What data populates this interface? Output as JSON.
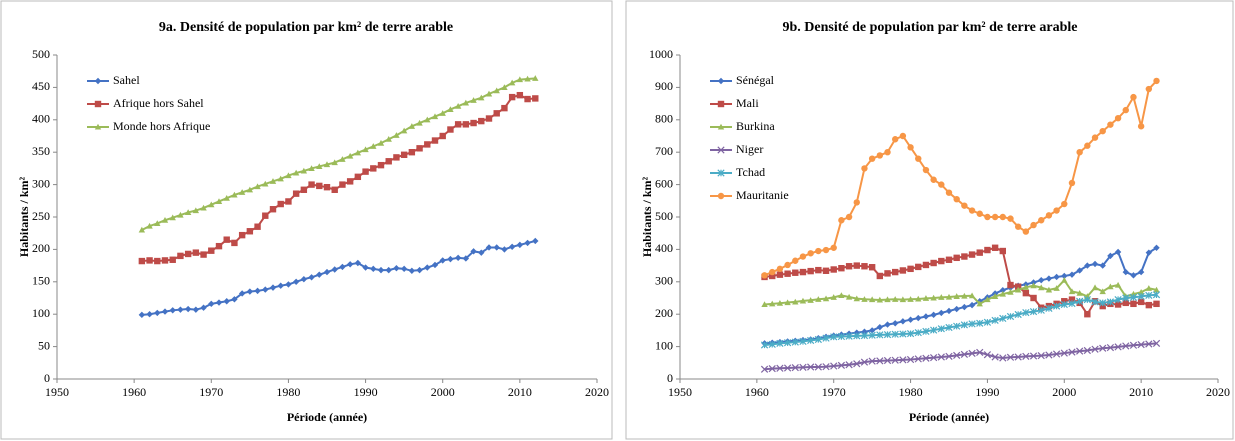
{
  "chart_data": [
    {
      "type": "line",
      "title": "9a. Densité de population par km² de terre arable",
      "x_label": "Période (année)",
      "y_label": "Habitants / km²",
      "xlim": [
        1950,
        2020
      ],
      "xticks": [
        1950,
        1960,
        1970,
        1980,
        1990,
        2000,
        2010,
        2020
      ],
      "ylim": [
        0,
        500
      ],
      "yticks": [
        0,
        50,
        100,
        150,
        200,
        250,
        300,
        350,
        400,
        450,
        500
      ],
      "grid": false,
      "legend": "upper-left",
      "x": [
        1961,
        1962,
        1963,
        1964,
        1965,
        1966,
        1967,
        1968,
        1969,
        1970,
        1971,
        1972,
        1973,
        1974,
        1975,
        1976,
        1977,
        1978,
        1979,
        1980,
        1981,
        1982,
        1983,
        1984,
        1985,
        1986,
        1987,
        1988,
        1989,
        1990,
        1991,
        1992,
        1993,
        1994,
        1995,
        1996,
        1997,
        1998,
        1999,
        2000,
        2001,
        2002,
        2003,
        2004,
        2005,
        2006,
        2007,
        2008,
        2009,
        2010,
        2011,
        2012
      ],
      "series": [
        {
          "name": "Sahel",
          "color": "#4472c4",
          "marker": "diamond",
          "values": [
            99,
            100,
            102,
            104,
            106,
            107,
            108,
            107,
            110,
            116,
            118,
            120,
            123,
            132,
            135,
            136,
            138,
            141,
            144,
            146,
            150,
            154,
            157,
            161,
            165,
            169,
            173,
            177,
            179,
            172,
            170,
            168,
            168,
            171,
            170,
            167,
            168,
            172,
            176,
            183,
            185,
            187,
            186,
            197,
            195,
            203,
            203,
            200,
            204,
            207,
            210,
            213
          ]
        },
        {
          "name": "Afrique hors Sahel",
          "color": "#be4b48",
          "marker": "square",
          "values": [
            182,
            183,
            182,
            183,
            184,
            190,
            193,
            195,
            192,
            198,
            205,
            215,
            210,
            222,
            228,
            235,
            252,
            262,
            270,
            274,
            286,
            292,
            300,
            298,
            296,
            292,
            300,
            305,
            312,
            320,
            325,
            330,
            336,
            342,
            346,
            350,
            356,
            362,
            368,
            375,
            385,
            393,
            393,
            395,
            398,
            402,
            410,
            418,
            435,
            438,
            432,
            433
          ]
        },
        {
          "name": "Monde hors Afrique",
          "color": "#9bbb59",
          "marker": "triangle",
          "values": [
            230,
            236,
            240,
            245,
            249,
            253,
            257,
            260,
            264,
            269,
            274,
            279,
            284,
            288,
            292,
            297,
            301,
            305,
            309,
            314,
            318,
            321,
            325,
            328,
            331,
            334,
            339,
            344,
            349,
            354,
            359,
            364,
            370,
            376,
            383,
            390,
            395,
            400,
            405,
            410,
            416,
            421,
            426,
            430,
            434,
            440,
            445,
            450,
            457,
            462,
            463,
            464
          ]
        }
      ]
    },
    {
      "type": "line",
      "title": "9b. Densité de population par km² de terre arable",
      "x_label": "Période (année)",
      "y_label": "Habitants / km²",
      "xlim": [
        1950,
        2020
      ],
      "xticks": [
        1950,
        1960,
        1970,
        1980,
        1990,
        2000,
        2010,
        2020
      ],
      "ylim": [
        0,
        1000
      ],
      "yticks": [
        0,
        100,
        200,
        300,
        400,
        500,
        600,
        700,
        800,
        900,
        1000
      ],
      "grid": false,
      "legend": "upper-left",
      "x": [
        1961,
        1962,
        1963,
        1964,
        1965,
        1966,
        1967,
        1968,
        1969,
        1970,
        1971,
        1972,
        1973,
        1974,
        1975,
        1976,
        1977,
        1978,
        1979,
        1980,
        1981,
        1982,
        1983,
        1984,
        1985,
        1986,
        1987,
        1988,
        1989,
        1990,
        1991,
        1992,
        1993,
        1994,
        1995,
        1996,
        1997,
        1998,
        1999,
        2000,
        2001,
        2002,
        2003,
        2004,
        2005,
        2006,
        2007,
        2008,
        2009,
        2010,
        2011,
        2012
      ],
      "series": [
        {
          "name": "Sénégal",
          "color": "#4472c4",
          "marker": "diamond",
          "values": [
            110,
            112,
            114,
            116,
            118,
            120,
            122,
            126,
            130,
            134,
            137,
            140,
            143,
            146,
            150,
            160,
            168,
            172,
            178,
            183,
            188,
            193,
            198,
            204,
            210,
            216,
            222,
            228,
            240,
            252,
            264,
            274,
            282,
            288,
            292,
            298,
            305,
            310,
            315,
            318,
            322,
            335,
            350,
            355,
            350,
            380,
            392,
            330,
            320,
            330,
            390,
            405
          ]
        },
        {
          "name": "Mali",
          "color": "#be4b48",
          "marker": "square",
          "values": [
            315,
            318,
            322,
            325,
            328,
            330,
            333,
            336,
            334,
            338,
            342,
            348,
            350,
            348,
            345,
            318,
            326,
            330,
            335,
            340,
            346,
            352,
            358,
            364,
            368,
            374,
            378,
            384,
            390,
            398,
            405,
            395,
            290,
            285,
            265,
            250,
            220,
            225,
            232,
            240,
            245,
            235,
            200,
            240,
            225,
            232,
            230,
            235,
            232,
            238,
            228,
            232
          ]
        },
        {
          "name": "Burkina",
          "color": "#9bbb59",
          "marker": "triangle",
          "values": [
            230,
            232,
            234,
            236,
            238,
            241,
            243,
            246,
            248,
            252,
            258,
            253,
            248,
            246,
            245,
            244,
            245,
            246,
            245,
            246,
            247,
            249,
            250,
            252,
            253,
            255,
            256,
            257,
            232,
            245,
            255,
            262,
            268,
            275,
            283,
            288,
            282,
            275,
            280,
            305,
            270,
            265,
            255,
            282,
            270,
            285,
            290,
            255,
            262,
            268,
            280,
            275
          ]
        },
        {
          "name": "Niger",
          "color": "#7f64a2",
          "marker": "x",
          "values": [
            30,
            32,
            33,
            34,
            35,
            36,
            37,
            37,
            38,
            40,
            42,
            44,
            47,
            52,
            55,
            56,
            57,
            58,
            59,
            60,
            62,
            64,
            66,
            68,
            70,
            73,
            76,
            79,
            82,
            75,
            68,
            65,
            67,
            68,
            70,
            71,
            72,
            74,
            77,
            80,
            83,
            86,
            88,
            92,
            95,
            97,
            99,
            102,
            104,
            106,
            108,
            110
          ]
        },
        {
          "name": "Tchad",
          "color": "#4bacc6",
          "marker": "star",
          "values": [
            105,
            107,
            110,
            112,
            114,
            116,
            119,
            122,
            126,
            130,
            131,
            132,
            133,
            134,
            135,
            136,
            137,
            138,
            139,
            140,
            143,
            147,
            151,
            155,
            159,
            163,
            167,
            170,
            172,
            175,
            181,
            187,
            193,
            199,
            205,
            208,
            212,
            218,
            225,
            230,
            233,
            240,
            245,
            238,
            235,
            238,
            245,
            250,
            252,
            255,
            258,
            260
          ]
        },
        {
          "name": "Mauritanie",
          "color": "#f79646",
          "marker": "circle",
          "values": [
            320,
            330,
            340,
            352,
            365,
            378,
            388,
            395,
            398,
            405,
            490,
            500,
            545,
            650,
            680,
            690,
            700,
            740,
            750,
            715,
            680,
            645,
            615,
            600,
            575,
            555,
            535,
            520,
            510,
            500,
            500,
            500,
            495,
            470,
            455,
            475,
            490,
            505,
            520,
            540,
            605,
            700,
            720,
            745,
            765,
            785,
            805,
            830,
            870,
            780,
            895,
            920
          ]
        }
      ]
    }
  ]
}
